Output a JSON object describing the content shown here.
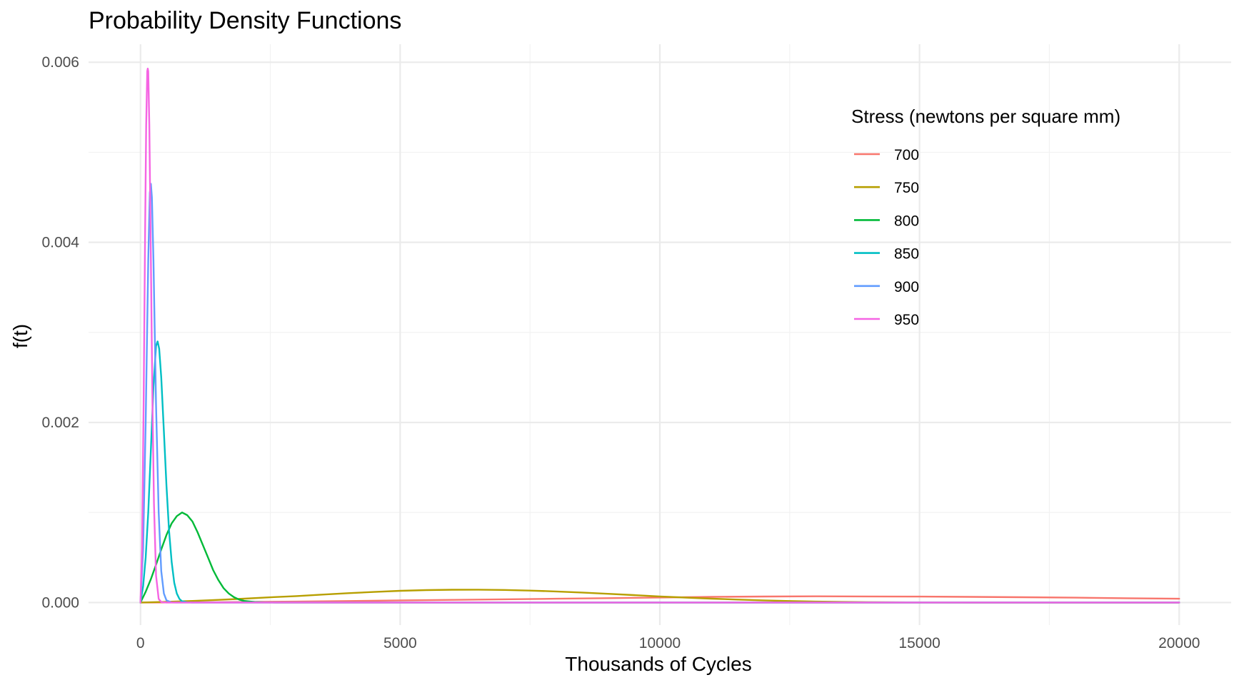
{
  "chart_data": {
    "type": "line",
    "title": "Probability Density Functions",
    "xlabel": "Thousands of Cycles",
    "ylabel": "f(t)",
    "xlim": [
      -1000,
      21000
    ],
    "ylim": [
      -0.00025,
      0.0062
    ],
    "x_ticks": [
      0,
      5000,
      10000,
      15000,
      20000
    ],
    "x_tick_labels": [
      "0",
      "5000",
      "10000",
      "15000",
      "20000"
    ],
    "y_ticks": [
      0,
      0.002,
      0.004,
      0.006
    ],
    "y_tick_labels": [
      "0.000",
      "0.002",
      "0.004",
      "0.006"
    ],
    "grid": true,
    "legend": {
      "title": "Stress (newtons per square mm)",
      "placement": "top-right"
    },
    "series": [
      {
        "name": "700",
        "color": "#F8766D",
        "x": [
          0,
          1000,
          2000,
          3000,
          4000,
          5000,
          6000,
          7000,
          8000,
          9000,
          10000,
          11000,
          12000,
          13000,
          14000,
          15000,
          16000,
          17000,
          18000,
          19000,
          20000
        ],
        "y": [
          0,
          2e-06,
          6e-06,
          1.1e-05,
          1.7e-05,
          2.4e-05,
          3e-05,
          3.6e-05,
          4.2e-05,
          4.9e-05,
          5.6e-05,
          6.3e-05,
          6.7e-05,
          6.9e-05,
          6.8e-05,
          6.6e-05,
          6.3e-05,
          5.9e-05,
          5.4e-05,
          4.8e-05,
          4.2e-05
        ]
      },
      {
        "name": "750",
        "color": "#B79F00",
        "x": [
          0,
          500,
          1000,
          1500,
          2000,
          2500,
          3000,
          3500,
          4000,
          4500,
          5000,
          5500,
          6000,
          6500,
          7000,
          7500,
          8000,
          8500,
          9000,
          9500,
          10000,
          10500,
          11000,
          11500,
          12000,
          12500,
          13000,
          13500,
          14000,
          15000,
          16000,
          17000,
          18000,
          20000
        ],
        "y": [
          0,
          8e-06,
          1.8e-05,
          3e-05,
          4.3e-05,
          5.8e-05,
          7.2e-05,
          8.8e-05,
          0.000104,
          0.000118,
          0.00013,
          0.000138,
          0.000142,
          0.000143,
          0.00014,
          0.000133,
          0.000123,
          0.000111,
          9.7e-05,
          8.3e-05,
          6.8e-05,
          5.5e-05,
          4.3e-05,
          3.3e-05,
          2.4e-05,
          1.7e-05,
          1.1e-05,
          7e-06,
          4e-06,
          1e-06,
          4e-07,
          1e-07,
          0,
          0
        ]
      },
      {
        "name": "800",
        "color": "#00BA38",
        "x": [
          0,
          100,
          200,
          300,
          400,
          500,
          600,
          700,
          800,
          900,
          1000,
          1100,
          1200,
          1300,
          1400,
          1500,
          1600,
          1700,
          1800,
          1900,
          2000,
          2200,
          2400,
          2600,
          3000,
          4000,
          6000,
          10000,
          20000
        ],
        "y": [
          0,
          0.00012,
          0.00026,
          0.00042,
          0.00059,
          0.00075,
          0.00088,
          0.00096,
          0.001,
          0.00097,
          0.0009,
          0.00078,
          0.00064,
          0.0005,
          0.00036,
          0.00025,
          0.00016,
          0.0001,
          6e-05,
          3.3e-05,
          1.8e-05,
          6e-06,
          2e-06,
          0,
          0,
          0,
          0,
          0,
          0
        ]
      },
      {
        "name": "850",
        "color": "#00BFC4",
        "x": [
          0,
          50,
          100,
          150,
          200,
          250,
          300,
          330,
          360,
          400,
          450,
          500,
          550,
          600,
          650,
          700,
          750,
          800,
          900,
          1000,
          1500,
          3000,
          10000,
          20000
        ],
        "y": [
          0,
          0.00018,
          0.0005,
          0.001,
          0.0017,
          0.0024,
          0.00285,
          0.0029,
          0.00282,
          0.0025,
          0.0019,
          0.0013,
          0.0008,
          0.00045,
          0.00022,
          0.0001,
          4e-05,
          1.5e-05,
          2e-06,
          0,
          0,
          0,
          0,
          0
        ]
      },
      {
        "name": "900",
        "color": "#619CFF",
        "x": [
          0,
          50,
          100,
          150,
          180,
          200,
          220,
          250,
          300,
          350,
          400,
          450,
          500,
          600,
          700,
          1000,
          3000,
          10000,
          20000
        ],
        "y": [
          0,
          0.0006,
          0.002,
          0.0038,
          0.00455,
          0.00465,
          0.0045,
          0.0038,
          0.0022,
          0.001,
          0.00035,
          0.0001,
          2.5e-05,
          1e-06,
          0,
          0,
          0,
          0,
          0
        ]
      },
      {
        "name": "950",
        "color": "#F564E3",
        "x": [
          0,
          30,
          60,
          90,
          110,
          130,
          140,
          150,
          170,
          200,
          230,
          260,
          300,
          350,
          400,
          500,
          700,
          1000,
          3000,
          10000,
          20000
        ],
        "y": [
          0,
          0.0006,
          0.0022,
          0.0042,
          0.0053,
          0.0059,
          0.00593,
          0.0059,
          0.0053,
          0.0038,
          0.0022,
          0.0011,
          0.0003,
          4e-05,
          5e-06,
          0,
          0,
          0,
          0,
          0,
          0
        ]
      }
    ]
  }
}
